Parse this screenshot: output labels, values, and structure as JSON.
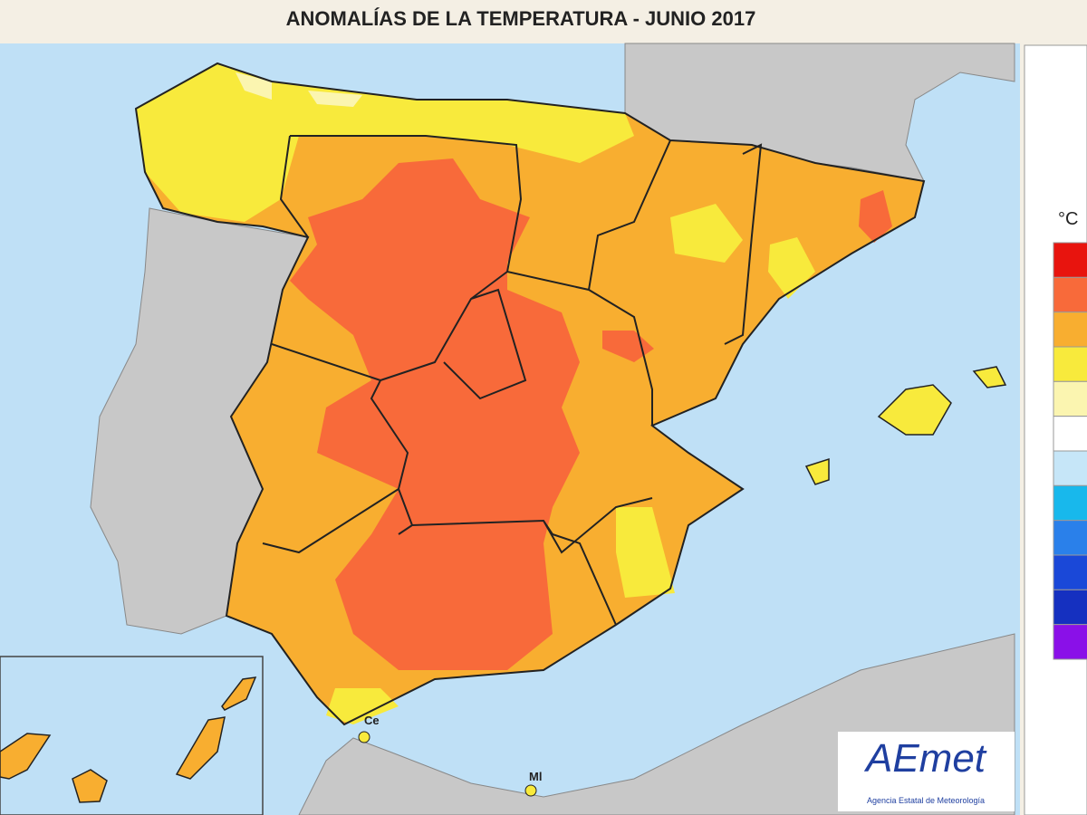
{
  "header": {
    "title": "ANOMALÍAS DE LA TEMPERATURA - JUNIO 2017"
  },
  "legend": {
    "unit": "°C",
    "colors": [
      "#e8140e",
      "#f86a3a",
      "#f8ae30",
      "#f8ea3c",
      "#fbf5b0",
      "#ffffff",
      "#c6e6f8",
      "#18b8ec",
      "#2a80ea",
      "#1a48d8",
      "#1530c0",
      "#8a10e8"
    ]
  },
  "map": {
    "labels": {
      "ceuta": "Ce",
      "melilla": "Ml"
    }
  },
  "logo": {
    "name": "AEmet",
    "subtitle": "Agencia Estatal de Meteorología"
  }
}
